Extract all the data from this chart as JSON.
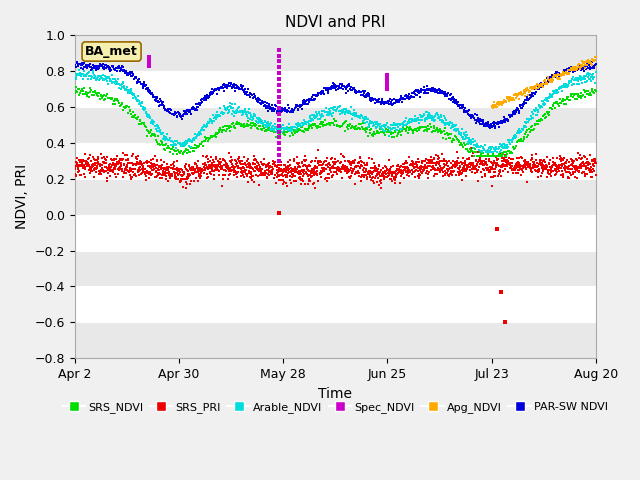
{
  "title": "NDVI and PRI",
  "xlabel": "Time",
  "ylabel": "NDVI, PRI",
  "ylim": [
    -0.8,
    1.0
  ],
  "xtick_labels": [
    "Apr 2",
    "Apr 30",
    "May 28",
    "Jun 25",
    "Jul 23",
    "Aug 20"
  ],
  "xtick_days": [
    0,
    28,
    56,
    84,
    112,
    140
  ],
  "annotation_text": "BA_met",
  "colors": {
    "SRS_NDVI": "#00dd00",
    "SRS_PRI": "#ee0000",
    "Arable_NDVI": "#00dddd",
    "Spec_NDVI": "#cc00cc",
    "Apg_NDVI": "#ffaa00",
    "PAR_SW_NDVI": "#0000dd"
  },
  "bg_color": "#ffffff",
  "band_color": "#e8e8e8"
}
